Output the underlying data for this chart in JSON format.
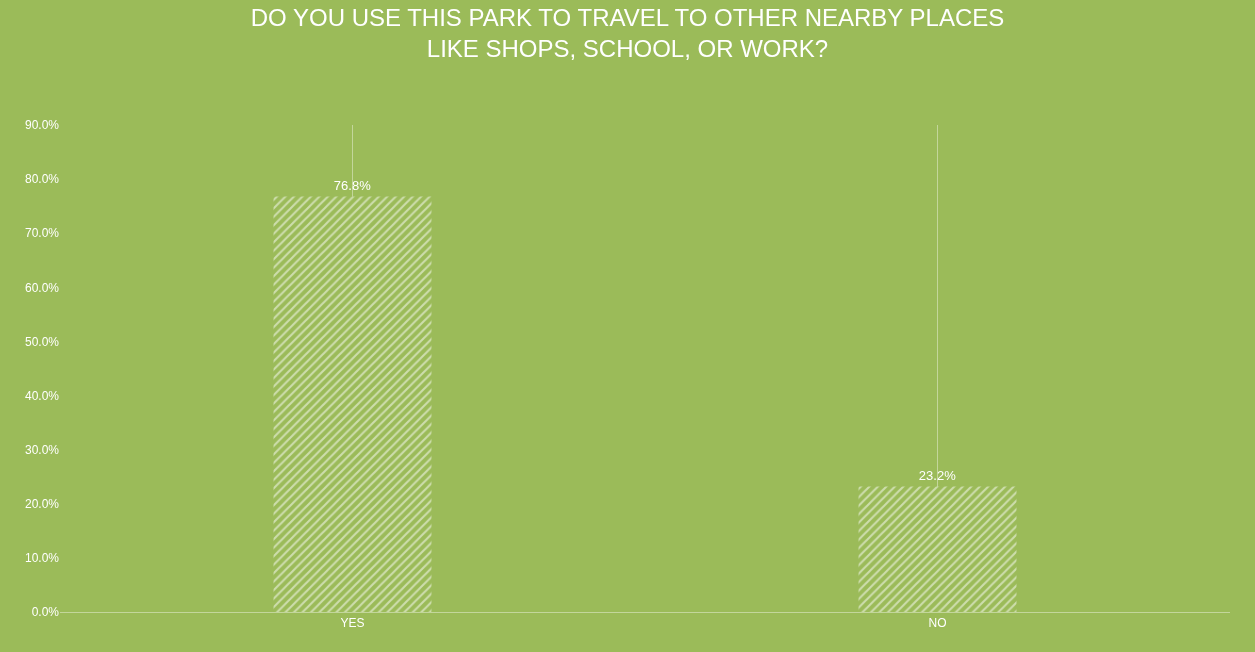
{
  "chart_data": {
    "type": "bar",
    "title": "DO YOU USE THIS PARK TO TRAVEL TO OTHER NEARBY PLACES\nLIKE SHOPS, SCHOOL, OR WORK?",
    "categories": [
      "YES",
      "NO"
    ],
    "values": [
      76.8,
      23.2
    ],
    "value_labels": [
      "76.8%",
      "23.2%"
    ],
    "color": "#ffffff",
    "ylim": [
      0,
      90
    ],
    "yticks": [
      {
        "value": 0,
        "label": "0.0%"
      },
      {
        "value": 10,
        "label": "10.0%"
      },
      {
        "value": 20,
        "label": "20.0%"
      },
      {
        "value": 30,
        "label": "30.0%"
      },
      {
        "value": 40,
        "label": "40.0%"
      },
      {
        "value": 50,
        "label": "50.0%"
      },
      {
        "value": 60,
        "label": "60.0%"
      },
      {
        "value": 70,
        "label": "70.0%"
      },
      {
        "value": 80,
        "label": "80.0%"
      },
      {
        "value": 90,
        "label": "90.0%"
      }
    ],
    "grid": "x",
    "legend": false
  }
}
